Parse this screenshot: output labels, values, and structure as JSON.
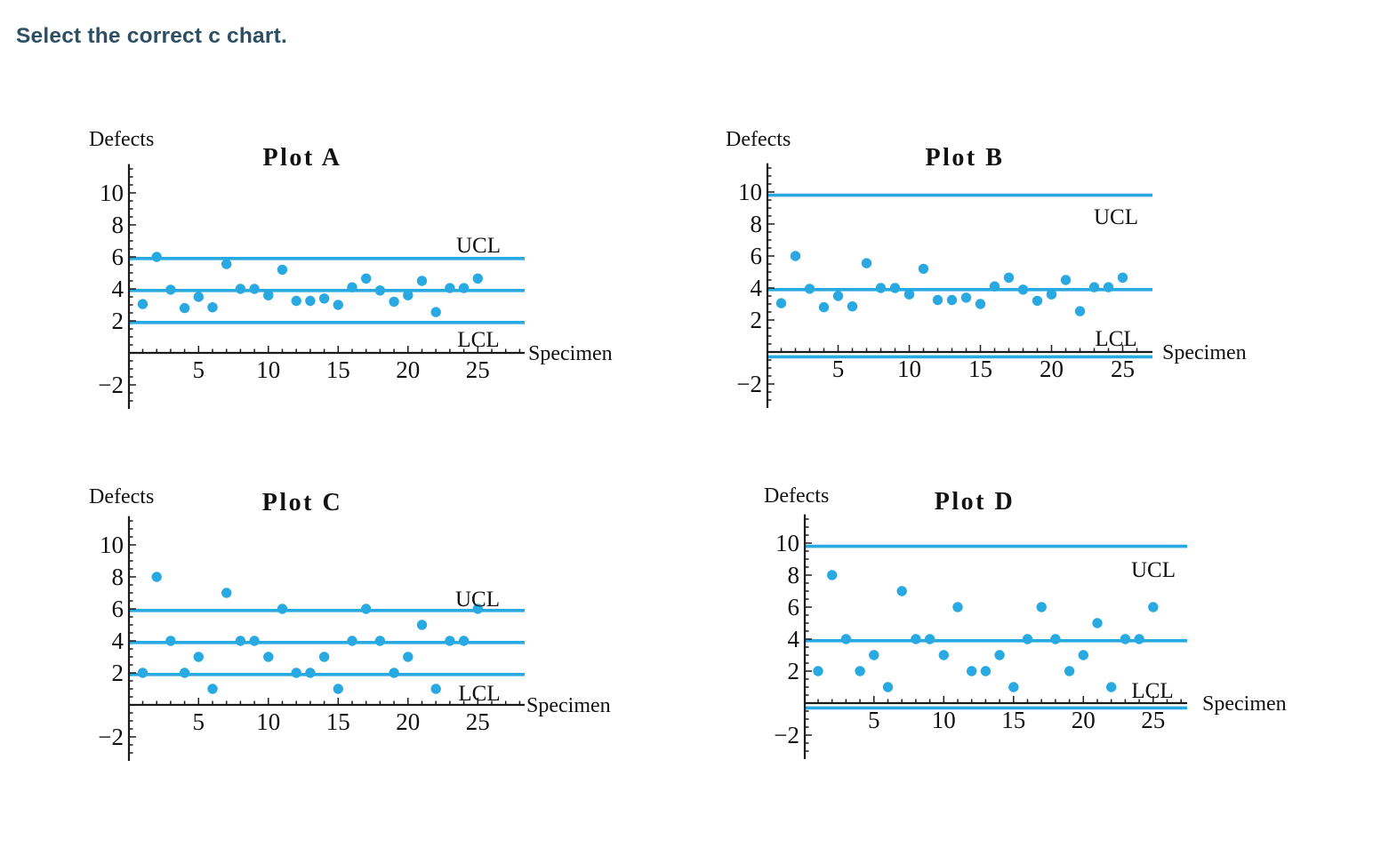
{
  "question": {
    "text": "Select the correct c chart."
  },
  "colors": {
    "accent_blue": "#29A9E1",
    "axis_color": "#1A1A1A",
    "text_color": "#111111",
    "question_color": "#2D4F63"
  },
  "chart_data": [
    {
      "id": "A",
      "type": "scatter",
      "title": "Plot A",
      "xlabel": "Specimen",
      "ylabel": "Defects",
      "ucl_label": "UCL",
      "lcl_label": "LCL",
      "control_limits": {
        "ucl": 5.9,
        "center": 3.9,
        "lcl": 1.9
      },
      "x": [
        1,
        2,
        3,
        4,
        5,
        6,
        7,
        8,
        9,
        10,
        11,
        12,
        13,
        14,
        15,
        16,
        17,
        18,
        19,
        20,
        21,
        22,
        23,
        24,
        25
      ],
      "values": [
        3.05,
        6,
        3.95,
        2.8,
        3.5,
        2.85,
        5.55,
        4,
        4,
        3.6,
        5.2,
        3.25,
        3.25,
        3.4,
        3,
        4.1,
        4.65,
        3.9,
        3.2,
        3.6,
        4.5,
        2.55,
        4.05,
        4.05,
        4.65
      ],
      "xticks": [
        5,
        10,
        15,
        20,
        25
      ],
      "xtick_labels": [
        "5",
        "10",
        "15",
        "20",
        "25"
      ],
      "yticks": [
        -2,
        2,
        4,
        6,
        8,
        10
      ],
      "ytick_labels": [
        "−2",
        "2",
        "4",
        "6",
        "8",
        "10"
      ],
      "xlim": [
        0,
        28.5
      ],
      "ylim": [
        -3.5,
        11.8
      ],
      "grid": false,
      "legend": "none"
    },
    {
      "id": "B",
      "type": "scatter",
      "title": "Plot B",
      "xlabel": "Specimen",
      "ylabel": "Defects",
      "ucl_label": "UCL",
      "lcl_label": "LCL",
      "control_limits": {
        "ucl": 9.8,
        "center": 3.9,
        "lcl": -0.3
      },
      "x": [
        1,
        2,
        3,
        4,
        5,
        6,
        7,
        8,
        9,
        10,
        11,
        12,
        13,
        14,
        15,
        16,
        17,
        18,
        19,
        20,
        21,
        22,
        23,
        24,
        25
      ],
      "values": [
        3.05,
        6,
        3.95,
        2.8,
        3.5,
        2.85,
        5.55,
        4,
        4,
        3.6,
        5.2,
        3.25,
        3.25,
        3.4,
        3,
        4.1,
        4.65,
        3.9,
        3.2,
        3.6,
        4.5,
        2.55,
        4.05,
        4.05,
        4.65
      ],
      "xticks": [
        5,
        10,
        15,
        20,
        25
      ],
      "xtick_labels": [
        "5",
        "10",
        "15",
        "20",
        "25"
      ],
      "yticks": [
        -2,
        2,
        4,
        6,
        8,
        10
      ],
      "ytick_labels": [
        "−2",
        "2",
        "4",
        "6",
        "8",
        "10"
      ],
      "xlim": [
        0,
        27
      ],
      "ylim": [
        -3.5,
        11.8
      ],
      "grid": false,
      "legend": "none"
    },
    {
      "id": "C",
      "type": "scatter",
      "title": "Plot C",
      "xlabel": "Specimen",
      "ylabel": "Defects",
      "ucl_label": "UCL",
      "lcl_label": "LCL",
      "control_limits": {
        "ucl": 5.9,
        "center": 3.9,
        "lcl": 1.9
      },
      "x": [
        1,
        2,
        3,
        4,
        5,
        6,
        7,
        8,
        9,
        10,
        11,
        12,
        13,
        14,
        15,
        16,
        17,
        18,
        19,
        20,
        21,
        22,
        23,
        24,
        25
      ],
      "values": [
        2,
        8,
        4,
        2,
        3,
        1,
        7,
        4,
        4,
        3,
        6,
        2,
        2,
        3,
        1,
        4,
        6,
        4,
        2,
        3,
        5,
        1,
        4,
        4,
        6
      ],
      "xticks": [
        5,
        10,
        15,
        20,
        25
      ],
      "xtick_labels": [
        "5",
        "10",
        "15",
        "20",
        "25"
      ],
      "yticks": [
        -2,
        2,
        4,
        6,
        8,
        10
      ],
      "ytick_labels": [
        "−2",
        "2",
        "4",
        "6",
        "8",
        "10"
      ],
      "xlim": [
        0,
        28.5
      ],
      "ylim": [
        -3.5,
        11.8
      ],
      "grid": false,
      "legend": "none"
    },
    {
      "id": "D",
      "type": "scatter",
      "title": "Plot D",
      "xlabel": "Specimen",
      "ylabel": "Defects",
      "ucl_label": "UCL",
      "lcl_label": "LCL",
      "control_limits": {
        "ucl": 9.8,
        "center": 3.9,
        "lcl": -0.3
      },
      "x": [
        1,
        2,
        3,
        4,
        5,
        6,
        7,
        8,
        9,
        10,
        11,
        12,
        13,
        14,
        15,
        16,
        17,
        18,
        19,
        20,
        21,
        22,
        23,
        24,
        25
      ],
      "values": [
        2,
        8,
        4,
        2,
        3,
        1,
        7,
        4,
        4,
        3,
        6,
        2,
        2,
        3,
        1,
        4,
        6,
        4,
        2,
        3,
        5,
        1,
        4,
        4,
        6
      ],
      "xticks": [
        5,
        10,
        15,
        20,
        25
      ],
      "xtick_labels": [
        "5",
        "10",
        "15",
        "20",
        "25"
      ],
      "yticks": [
        -2,
        2,
        4,
        6,
        8,
        10
      ],
      "ytick_labels": [
        "−2",
        "2",
        "4",
        "6",
        "8",
        "10"
      ],
      "xlim": [
        0,
        27.5
      ],
      "ylim": [
        -3.5,
        11.8
      ],
      "grid": false,
      "legend": "none"
    }
  ]
}
